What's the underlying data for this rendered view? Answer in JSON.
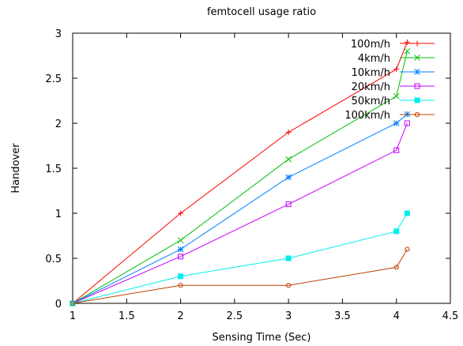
{
  "chart_data": {
    "type": "line",
    "title": "femtocell usage ratio",
    "xlabel": "Sensing Time (Sec)",
    "ylabel": "Handover",
    "xlim": [
      1,
      4.5
    ],
    "ylim": [
      0,
      3
    ],
    "xticks": [
      "1",
      "1.5",
      "2",
      "2.5",
      "3",
      "3.5",
      "4",
      "4.5"
    ],
    "yticks": [
      "0",
      "0.5",
      "1",
      "1.5",
      "2",
      "2.5",
      "3"
    ],
    "grid": false,
    "legend_position": "top-right",
    "series": [
      {
        "name": "100m/h",
        "color": "#ff0000",
        "marker": "plus",
        "x": [
          1,
          2,
          3,
          4,
          4.1
        ],
        "y": [
          0,
          1.0,
          1.9,
          2.6,
          2.9
        ]
      },
      {
        "name": "4km/h",
        "color": "#00c000",
        "marker": "cross",
        "x": [
          1,
          2,
          3,
          4,
          4.1
        ],
        "y": [
          0,
          0.7,
          1.6,
          2.3,
          2.8
        ]
      },
      {
        "name": "10km/h",
        "color": "#0080ff",
        "marker": "star",
        "x": [
          1,
          2,
          3,
          4,
          4.1
        ],
        "y": [
          0,
          0.6,
          1.4,
          2.0,
          2.1
        ]
      },
      {
        "name": "20km/h",
        "color": "#c000ff",
        "marker": "open-square",
        "x": [
          1,
          2,
          3,
          4,
          4.1
        ],
        "y": [
          0,
          0.52,
          1.1,
          1.7,
          2.0
        ]
      },
      {
        "name": "50km/h",
        "color": "#00eeee",
        "marker": "filled-square",
        "x": [
          1,
          2,
          3,
          4,
          4.1
        ],
        "y": [
          0,
          0.3,
          0.5,
          0.8,
          1.0
        ]
      },
      {
        "name": "100km/h",
        "color": "#c04000",
        "marker": "open-circle",
        "x": [
          1,
          2,
          3,
          4,
          4.1
        ],
        "y": [
          0,
          0.2,
          0.2,
          0.4,
          0.6
        ]
      }
    ]
  }
}
